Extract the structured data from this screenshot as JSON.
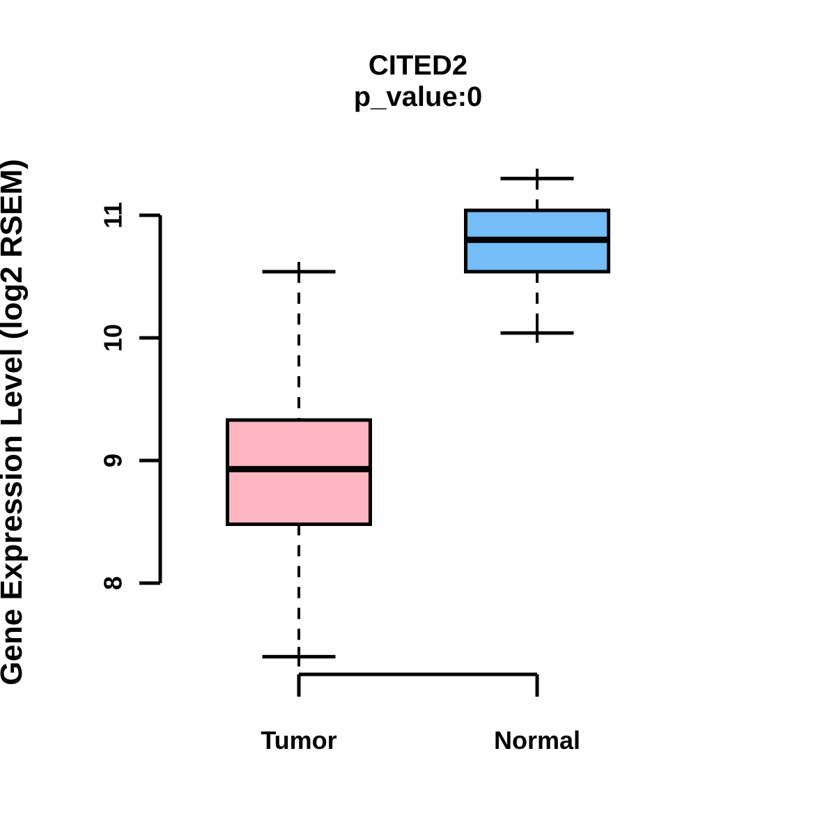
{
  "figure": {
    "background": "#FFFFFF",
    "line_color": "#000000"
  },
  "chart_data": {
    "type": "boxplot",
    "title": "CITED2",
    "subtitle": "p_value:0",
    "xlabel": "",
    "ylabel": "Gene Expression Level (log2 RSEM)",
    "categories": [
      "Tumor",
      "Normal"
    ],
    "yticks": [
      8,
      9,
      10,
      11
    ],
    "ylim": [
      8,
      11
    ],
    "grid": false,
    "legend": "none",
    "series": [
      {
        "name": "Tumor",
        "color": "#FFB6C1",
        "whisker_low": 7.4,
        "q1": 8.48,
        "median": 8.93,
        "q3": 9.33,
        "whisker_high": 10.54
      },
      {
        "name": "Normal",
        "color": "#74BDF6",
        "whisker_low": 10.04,
        "q1": 10.54,
        "median": 10.8,
        "q3": 11.04,
        "whisker_high": 11.3
      }
    ]
  }
}
